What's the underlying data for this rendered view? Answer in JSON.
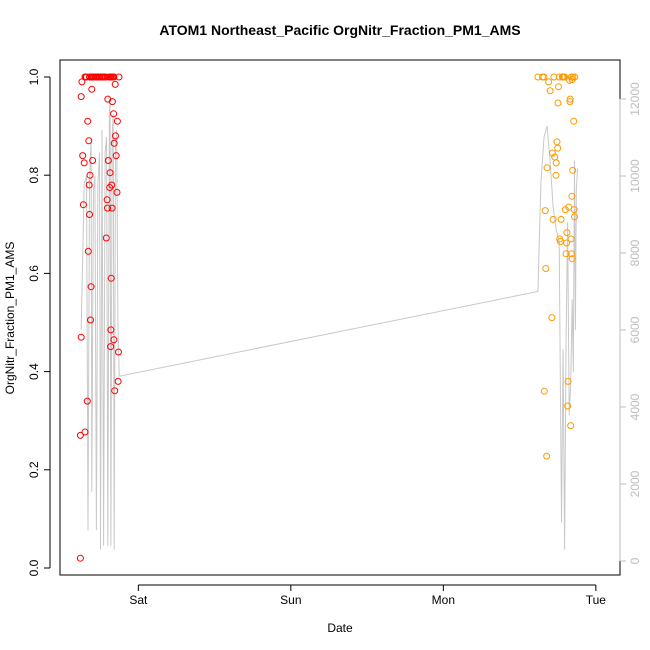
{
  "chart_data": {
    "type": "scatter",
    "title": "ATOM1 Northeast_Pacific OrgNitr_Fraction_PM1_AMS",
    "xlabel": "Date",
    "ylabel": "OrgNitr_Fraction_PM1_AMS",
    "x_unit": "days from Friday 00:00",
    "x_tick_labels": [
      {
        "x": 1.0,
        "label": "Sat"
      },
      {
        "x": 2.0,
        "label": "Sun"
      },
      {
        "x": 3.0,
        "label": "Mon"
      },
      {
        "x": 4.0,
        "label": "Tue"
      }
    ],
    "xlim": [
      0.565,
      4.06
    ],
    "ylim": [
      0.0,
      1.0
    ],
    "y_ticks": [
      "0.0",
      "0.2",
      "0.4",
      "0.6",
      "0.8",
      "1.0"
    ],
    "y_right_lim": [
      0,
      12000
    ],
    "y_right_ticks": [
      "0",
      "2000",
      "4000",
      "6000",
      "8000",
      "10000",
      "12000"
    ],
    "colors": {
      "series1": "#ff0000",
      "series2": "#ff9900",
      "line": "#c8c8c8",
      "right_axis": "#bdbdbd"
    },
    "series": [
      {
        "color": "#ff0000",
        "points": [
          [
            0.62,
            0.02
          ],
          [
            0.62,
            0.27
          ],
          [
            0.625,
            0.47
          ],
          [
            0.625,
            0.96
          ],
          [
            0.63,
            0.99
          ],
          [
            0.635,
            0.84
          ],
          [
            0.64,
            0.74
          ],
          [
            0.645,
            0.825
          ],
          [
            0.65,
            1.0
          ],
          [
            0.65,
            0.277
          ],
          [
            0.66,
            1.0
          ],
          [
            0.665,
            0.34
          ],
          [
            0.668,
            0.91
          ],
          [
            0.672,
            0.645
          ],
          [
            0.675,
            0.87
          ],
          [
            0.678,
            0.78
          ],
          [
            0.68,
            0.72
          ],
          [
            0.683,
            0.8
          ],
          [
            0.686,
            0.505
          ],
          [
            0.69,
            0.573
          ],
          [
            0.692,
            1.0
          ],
          [
            0.695,
            0.975
          ],
          [
            0.7,
            0.83
          ],
          [
            0.705,
            1.0
          ],
          [
            0.71,
            1.0
          ],
          [
            0.72,
            1.0
          ],
          [
            0.73,
            1.0
          ],
          [
            0.74,
            1.0
          ],
          [
            0.75,
            1.0
          ],
          [
            0.76,
            1.0
          ],
          [
            0.77,
            1.0
          ],
          [
            0.78,
            1.0
          ],
          [
            0.79,
            0.672
          ],
          [
            0.795,
            0.75
          ],
          [
            0.798,
            0.733
          ],
          [
            0.8,
            0.955
          ],
          [
            0.803,
            0.83
          ],
          [
            0.808,
            1.0
          ],
          [
            0.812,
            0.775
          ],
          [
            0.815,
            0.805
          ],
          [
            0.818,
            0.451
          ],
          [
            0.82,
            0.485
          ],
          [
            0.822,
            0.59
          ],
          [
            0.825,
            0.78
          ],
          [
            0.828,
            0.733
          ],
          [
            0.83,
            0.95
          ],
          [
            0.833,
            1.0
          ],
          [
            0.838,
            0.925
          ],
          [
            0.84,
            0.465
          ],
          [
            0.842,
            0.865
          ],
          [
            0.845,
            0.361
          ],
          [
            0.848,
            0.985
          ],
          [
            0.85,
            0.88
          ],
          [
            0.855,
            0.84
          ],
          [
            0.86,
            0.765
          ],
          [
            0.863,
            0.91
          ],
          [
            0.867,
            0.38
          ],
          [
            0.87,
            0.44
          ],
          [
            0.873,
            1.0
          ],
          [
            0.84,
            1.0
          ],
          [
            0.82,
            1.0
          ],
          [
            0.7,
            1.0
          ],
          [
            0.68,
            1.0
          ],
          [
            0.655,
            1.0
          ],
          [
            0.725,
            1.0
          ],
          [
            0.765,
            1.0
          ],
          [
            0.785,
            1.0
          ],
          [
            0.815,
            1.0
          ],
          [
            0.828,
            1.0
          ],
          [
            0.835,
            1.0
          ]
        ]
      },
      {
        "color": "#ff9900",
        "points": [
          [
            3.62,
            1.0
          ],
          [
            3.65,
            1.0
          ],
          [
            3.66,
            1.0
          ],
          [
            3.662,
            0.36
          ],
          [
            3.668,
            0.728
          ],
          [
            3.672,
            0.61
          ],
          [
            3.678,
            0.228
          ],
          [
            3.68,
            0.815
          ],
          [
            3.69,
            0.99
          ],
          [
            3.7,
            0.972
          ],
          [
            3.712,
            0.51
          ],
          [
            3.715,
            0.845
          ],
          [
            3.72,
            0.71
          ],
          [
            3.725,
            1.0
          ],
          [
            3.73,
            0.837
          ],
          [
            3.738,
            0.8
          ],
          [
            3.74,
            0.825
          ],
          [
            3.745,
            0.868
          ],
          [
            3.75,
            0.855
          ],
          [
            3.752,
            0.947
          ],
          [
            3.755,
            0.98
          ],
          [
            3.76,
            1.0
          ],
          [
            3.763,
            0.67
          ],
          [
            3.768,
            0.665
          ],
          [
            3.772,
            0.71
          ],
          [
            3.78,
            1.0
          ],
          [
            3.785,
            1.0
          ],
          [
            3.79,
            1.0
          ],
          [
            3.795,
            1.0
          ],
          [
            3.8,
            0.73
          ],
          [
            3.805,
            0.64
          ],
          [
            3.808,
            0.662
          ],
          [
            3.81,
            0.683
          ],
          [
            3.815,
            0.33
          ],
          [
            3.818,
            0.38
          ],
          [
            3.822,
            0.735
          ],
          [
            3.828,
            0.993
          ],
          [
            3.83,
            0.95
          ],
          [
            3.832,
            0.955
          ],
          [
            3.835,
            0.29
          ],
          [
            3.838,
            0.67
          ],
          [
            3.84,
            0.64
          ],
          [
            3.843,
            0.757
          ],
          [
            3.845,
            0.63
          ],
          [
            3.848,
            0.81
          ],
          [
            3.85,
            1.0
          ],
          [
            3.855,
            0.91
          ],
          [
            3.858,
            0.73
          ],
          [
            3.86,
            0.715
          ],
          [
            3.862,
            1.0
          ],
          [
            3.84,
            1.0
          ],
          [
            3.845,
            0.995
          ]
        ]
      }
    ],
    "line_series": {
      "axis": "right",
      "points": [
        [
          0.625,
          6000
        ],
        [
          0.645,
          9800
        ],
        [
          0.66,
          10000
        ],
        [
          0.67,
          800
        ],
        [
          0.68,
          9800
        ],
        [
          0.69,
          11000
        ],
        [
          0.695,
          1800
        ],
        [
          0.705,
          9600
        ],
        [
          0.715,
          10000
        ],
        [
          0.725,
          800
        ],
        [
          0.735,
          9800
        ],
        [
          0.745,
          10600
        ],
        [
          0.752,
          300
        ],
        [
          0.762,
          11200
        ],
        [
          0.772,
          400
        ],
        [
          0.782,
          10600
        ],
        [
          0.792,
          11000
        ],
        [
          0.8,
          400
        ],
        [
          0.81,
          11600
        ],
        [
          0.815,
          12000
        ],
        [
          0.82,
          400
        ],
        [
          0.828,
          11000
        ],
        [
          0.835,
          11600
        ],
        [
          0.842,
          300
        ],
        [
          0.85,
          10800
        ],
        [
          0.858,
          11200
        ],
        [
          0.866,
          6200
        ],
        [
          0.875,
          4800
        ],
        [
          3.62,
          7000
        ],
        [
          3.64,
          9800
        ],
        [
          3.66,
          11000
        ],
        [
          3.68,
          11300
        ],
        [
          3.7,
          10400
        ],
        [
          3.72,
          9200
        ],
        [
          3.74,
          8600
        ],
        [
          3.76,
          8300
        ],
        [
          3.775,
          1000
        ],
        [
          3.785,
          5500
        ],
        [
          3.795,
          300
        ],
        [
          3.805,
          5800
        ],
        [
          3.815,
          8800
        ],
        [
          3.825,
          3800
        ],
        [
          3.835,
          4600
        ],
        [
          3.845,
          6800
        ],
        [
          3.852,
          4900
        ],
        [
          3.86,
          10400
        ],
        [
          3.866,
          6000
        ],
        [
          3.872,
          9600
        ],
        [
          3.88,
          10200
        ]
      ]
    }
  }
}
